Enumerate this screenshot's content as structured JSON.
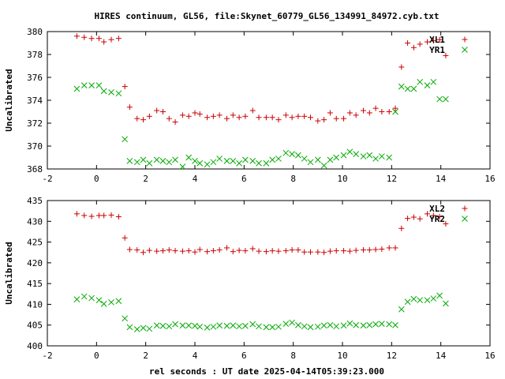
{
  "chart_data": {
    "type": "scatter",
    "title": "HIRES continuum, GL56, file:Skynet_60779_GL56_134991_84972.cyb.txt",
    "xlabel": "rel seconds : UT date 2025-04-14T05:39:23.000",
    "colors": {
      "red": "#cc0000",
      "green": "#00aa00",
      "axis": "#000000"
    },
    "panels": [
      {
        "ylabel": "Uncalibrated",
        "xlim": [
          -2,
          16
        ],
        "ylim": [
          368,
          380
        ],
        "xticks": [
          -2,
          0,
          2,
          4,
          6,
          8,
          10,
          12,
          14,
          16
        ],
        "yticks": [
          368,
          370,
          372,
          374,
          376,
          378,
          380
        ],
        "series": [
          {
            "name": "XL1",
            "marker": "plus",
            "color": "#cc0000",
            "x": [
              -0.8,
              -0.5,
              -0.2,
              0.1,
              0.3,
              0.6,
              0.9,
              1.15,
              1.35,
              1.65,
              1.9,
              2.15,
              2.45,
              2.7,
              2.95,
              3.2,
              3.5,
              3.75,
              4.0,
              4.2,
              4.5,
              4.75,
              5.0,
              5.3,
              5.55,
              5.8,
              6.05,
              6.35,
              6.6,
              6.9,
              7.15,
              7.4,
              7.7,
              7.95,
              8.2,
              8.45,
              8.7,
              9.0,
              9.25,
              9.5,
              9.75,
              10.05,
              10.3,
              10.55,
              10.85,
              11.1,
              11.35,
              11.6,
              11.9,
              12.15,
              12.4,
              12.65,
              12.9,
              13.15,
              13.45,
              13.7,
              13.95,
              14.2
            ],
            "y": [
              379.6,
              379.5,
              379.4,
              379.4,
              379.1,
              379.3,
              379.4,
              375.2,
              373.4,
              372.4,
              372.3,
              372.6,
              373.1,
              373.0,
              372.4,
              372.1,
              372.7,
              372.6,
              372.9,
              372.8,
              372.5,
              372.6,
              372.7,
              372.4,
              372.7,
              372.5,
              372.6,
              373.1,
              372.5,
              372.5,
              372.5,
              372.3,
              372.7,
              372.5,
              372.6,
              372.6,
              372.5,
              372.2,
              372.3,
              372.9,
              372.4,
              372.4,
              372.9,
              372.7,
              373.1,
              372.9,
              373.3,
              373.0,
              373.0,
              373.3,
              376.9,
              379.0,
              378.6,
              378.9,
              379.1,
              379.2,
              379.3,
              377.9
            ]
          },
          {
            "name": "YR1",
            "marker": "cross",
            "color": "#00aa00",
            "x": [
              -0.8,
              -0.5,
              -0.2,
              0.1,
              0.3,
              0.6,
              0.9,
              1.15,
              1.35,
              1.65,
              1.9,
              2.15,
              2.45,
              2.7,
              2.95,
              3.2,
              3.5,
              3.75,
              4.0,
              4.2,
              4.5,
              4.75,
              5.0,
              5.3,
              5.55,
              5.8,
              6.05,
              6.35,
              6.6,
              6.9,
              7.15,
              7.4,
              7.7,
              7.95,
              8.2,
              8.45,
              8.7,
              9.0,
              9.25,
              9.5,
              9.75,
              10.05,
              10.3,
              10.55,
              10.85,
              11.1,
              11.35,
              11.6,
              11.9,
              12.15,
              12.4,
              12.65,
              12.9,
              13.15,
              13.45,
              13.7,
              13.95,
              14.2
            ],
            "y": [
              375.0,
              375.3,
              375.3,
              375.3,
              374.8,
              374.7,
              374.6,
              370.6,
              368.7,
              368.6,
              368.8,
              368.5,
              368.8,
              368.7,
              368.6,
              368.8,
              368.2,
              369.0,
              368.7,
              368.5,
              368.4,
              368.6,
              368.9,
              368.7,
              368.7,
              368.5,
              368.8,
              368.7,
              368.5,
              368.5,
              368.8,
              368.9,
              369.4,
              369.3,
              369.2,
              368.9,
              368.6,
              368.8,
              368.3,
              368.8,
              369.0,
              369.2,
              369.5,
              369.3,
              369.1,
              369.2,
              368.9,
              369.1,
              369.0,
              373.0,
              375.2,
              375.0,
              375.0,
              375.6,
              375.3,
              375.6,
              374.1,
              374.1
            ]
          }
        ]
      },
      {
        "ylabel": "Uncalibrated",
        "xlim": [
          -2,
          16
        ],
        "ylim": [
          400,
          435
        ],
        "xticks": [
          -2,
          0,
          2,
          4,
          6,
          8,
          10,
          12,
          14,
          16
        ],
        "yticks": [
          400,
          405,
          410,
          415,
          420,
          425,
          430,
          435
        ],
        "series": [
          {
            "name": "XL2",
            "marker": "plus",
            "color": "#cc0000",
            "x": [
              -0.8,
              -0.5,
              -0.2,
              0.1,
              0.3,
              0.6,
              0.9,
              1.15,
              1.35,
              1.65,
              1.9,
              2.15,
              2.45,
              2.7,
              2.95,
              3.2,
              3.5,
              3.75,
              4.0,
              4.2,
              4.5,
              4.75,
              5.0,
              5.3,
              5.55,
              5.8,
              6.05,
              6.35,
              6.6,
              6.9,
              7.15,
              7.4,
              7.7,
              7.95,
              8.2,
              8.45,
              8.7,
              9.0,
              9.25,
              9.5,
              9.75,
              10.05,
              10.3,
              10.55,
              10.85,
              11.1,
              11.35,
              11.6,
              11.9,
              12.15,
              12.4,
              12.65,
              12.9,
              13.15,
              13.45,
              13.7,
              13.95,
              14.2
            ],
            "y": [
              431.8,
              431.4,
              431.2,
              431.4,
              431.4,
              431.5,
              431.1,
              426.0,
              423.2,
              423.1,
              422.5,
              423.0,
              422.8,
              422.9,
              423.1,
              422.9,
              422.8,
              422.9,
              422.6,
              423.2,
              422.7,
              422.9,
              423.1,
              423.6,
              422.7,
              423.0,
              422.9,
              423.4,
              422.8,
              422.7,
              422.9,
              422.8,
              422.9,
              423.1,
              423.1,
              422.6,
              422.6,
              422.6,
              422.5,
              422.8,
              422.9,
              422.9,
              422.8,
              423.0,
              423.1,
              423.1,
              423.2,
              423.3,
              423.6,
              423.6,
              428.3,
              430.7,
              431.0,
              430.6,
              431.8,
              431.4,
              431.1,
              429.4
            ]
          },
          {
            "name": "YR2",
            "marker": "cross",
            "color": "#00aa00",
            "x": [
              -0.8,
              -0.5,
              -0.2,
              0.1,
              0.3,
              0.6,
              0.9,
              1.15,
              1.35,
              1.65,
              1.9,
              2.15,
              2.45,
              2.7,
              2.95,
              3.2,
              3.5,
              3.75,
              4.0,
              4.2,
              4.5,
              4.75,
              5.0,
              5.3,
              5.55,
              5.8,
              6.05,
              6.35,
              6.6,
              6.9,
              7.15,
              7.4,
              7.7,
              7.95,
              8.2,
              8.45,
              8.7,
              9.0,
              9.25,
              9.5,
              9.75,
              10.05,
              10.3,
              10.55,
              10.85,
              11.1,
              11.35,
              11.6,
              11.9,
              12.15,
              12.4,
              12.65,
              12.9,
              13.15,
              13.45,
              13.7,
              13.95,
              14.2
            ],
            "y": [
              411.2,
              411.9,
              411.5,
              411.0,
              410.1,
              410.5,
              410.8,
              406.6,
              404.5,
              404.0,
              404.3,
              404.1,
              404.9,
              404.8,
              404.7,
              405.2,
              404.9,
              404.9,
              404.8,
              404.6,
              404.4,
              404.6,
              404.9,
              404.8,
              404.9,
              404.7,
              404.8,
              405.2,
              404.7,
              404.5,
              404.5,
              404.6,
              405.3,
              405.6,
              405.0,
              404.7,
              404.5,
              404.6,
              404.9,
              405.0,
              404.7,
              404.9,
              405.4,
              405.0,
              404.9,
              405.0,
              405.2,
              405.3,
              405.2,
              405.0,
              408.8,
              410.6,
              411.3,
              411.0,
              411.0,
              411.4,
              412.1,
              410.2
            ]
          }
        ]
      }
    ]
  }
}
